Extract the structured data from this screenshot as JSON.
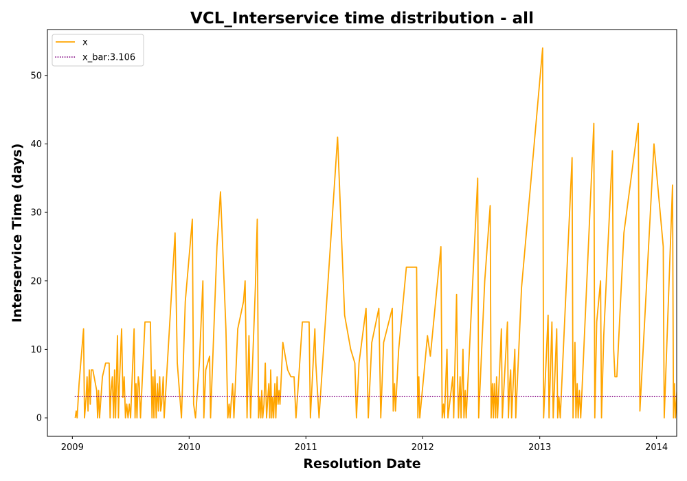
{
  "chart_data": {
    "type": "line",
    "title": "VCL_Interservice time distribution - all",
    "xlabel": "Resolution Date",
    "ylabel": "Interservice Time (days)",
    "xlim": [
      "2008-10-15",
      "2014-03-05"
    ],
    "ylim": [
      -2.7,
      56.7
    ],
    "x_ticks": [
      "2009-01-01",
      "2010-01-01",
      "2011-01-01",
      "2012-01-01",
      "2013-01-01",
      "2014-01-01"
    ],
    "x_tick_labels": [
      "2009",
      "2010",
      "2011",
      "2012",
      "2013",
      "2014"
    ],
    "y_ticks": [
      0,
      10,
      20,
      30,
      40,
      50
    ],
    "y_tick_labels": [
      "0",
      "10",
      "20",
      "30",
      "40",
      "50"
    ],
    "grid": false,
    "legend": "upper left",
    "series": [
      {
        "name": "x",
        "color": "#ffa500",
        "style": "solid",
        "points": [
          [
            "2009-01-10",
            0
          ],
          [
            "2009-01-13",
            1
          ],
          [
            "2009-01-16",
            0
          ],
          [
            "2009-01-22",
            5
          ],
          [
            "2009-02-05",
            13
          ],
          [
            "2009-02-08",
            0
          ],
          [
            "2009-02-13",
            3
          ],
          [
            "2009-02-16",
            6
          ],
          [
            "2009-02-19",
            1
          ],
          [
            "2009-02-23",
            7
          ],
          [
            "2009-02-26",
            2
          ],
          [
            "2009-03-01",
            7
          ],
          [
            "2009-03-06",
            7
          ],
          [
            "2009-03-18",
            4
          ],
          [
            "2009-03-21",
            0
          ],
          [
            "2009-03-24",
            4
          ],
          [
            "2009-03-27",
            0
          ],
          [
            "2009-03-30",
            2
          ],
          [
            "2009-04-05",
            6
          ],
          [
            "2009-04-15",
            8
          ],
          [
            "2009-04-26",
            8
          ],
          [
            "2009-04-29",
            0
          ],
          [
            "2009-05-02",
            4
          ],
          [
            "2009-05-06",
            6
          ],
          [
            "2009-05-10",
            0
          ],
          [
            "2009-05-13",
            7
          ],
          [
            "2009-05-16",
            0
          ],
          [
            "2009-05-22",
            12
          ],
          [
            "2009-05-25",
            0
          ],
          [
            "2009-05-28",
            5
          ],
          [
            "2009-06-04",
            13
          ],
          [
            "2009-06-08",
            3
          ],
          [
            "2009-06-12",
            6
          ],
          [
            "2009-06-16",
            0
          ],
          [
            "2009-06-20",
            2
          ],
          [
            "2009-06-24",
            0
          ],
          [
            "2009-06-28",
            2
          ],
          [
            "2009-07-02",
            0
          ],
          [
            "2009-07-13",
            13
          ],
          [
            "2009-07-16",
            0
          ],
          [
            "2009-07-19",
            5
          ],
          [
            "2009-07-22",
            0
          ],
          [
            "2009-07-26",
            6
          ],
          [
            "2009-07-29",
            5
          ],
          [
            "2009-08-02",
            0
          ],
          [
            "2009-08-16",
            14
          ],
          [
            "2009-09-02",
            14
          ],
          [
            "2009-09-07",
            0
          ],
          [
            "2009-09-10",
            6
          ],
          [
            "2009-09-13",
            0
          ],
          [
            "2009-09-16",
            7
          ],
          [
            "2009-09-20",
            0
          ],
          [
            "2009-09-24",
            5
          ],
          [
            "2009-09-27",
            1
          ],
          [
            "2009-10-01",
            6
          ],
          [
            "2009-10-04",
            1
          ],
          [
            "2009-10-07",
            2
          ],
          [
            "2009-10-12",
            6
          ],
          [
            "2009-10-15",
            0
          ],
          [
            "2009-11-18",
            27
          ],
          [
            "2009-11-25",
            8
          ],
          [
            "2009-12-08",
            0
          ],
          [
            "2009-12-20",
            17
          ],
          [
            "2010-01-11",
            29
          ],
          [
            "2010-01-15",
            2
          ],
          [
            "2010-01-21",
            0
          ],
          [
            "2010-02-02",
            8
          ],
          [
            "2010-02-13",
            20
          ],
          [
            "2010-02-16",
            0
          ],
          [
            "2010-02-22",
            7
          ],
          [
            "2010-03-06",
            9
          ],
          [
            "2010-03-09",
            0
          ],
          [
            "2010-03-29",
            25
          ],
          [
            "2010-04-09",
            33
          ],
          [
            "2010-04-26",
            13
          ],
          [
            "2010-05-02",
            0
          ],
          [
            "2010-05-06",
            2
          ],
          [
            "2010-05-09",
            0
          ],
          [
            "2010-05-12",
            2
          ],
          [
            "2010-05-17",
            5
          ],
          [
            "2010-05-21",
            0
          ],
          [
            "2010-06-02",
            13
          ],
          [
            "2010-06-20",
            17
          ],
          [
            "2010-06-25",
            20
          ],
          [
            "2010-07-01",
            0
          ],
          [
            "2010-07-07",
            12
          ],
          [
            "2010-07-12",
            0
          ],
          [
            "2010-07-27",
            19
          ],
          [
            "2010-08-02",
            29
          ],
          [
            "2010-08-06",
            0
          ],
          [
            "2010-08-10",
            3
          ],
          [
            "2010-08-13",
            0
          ],
          [
            "2010-08-16",
            4
          ],
          [
            "2010-08-19",
            0
          ],
          [
            "2010-08-23",
            2
          ],
          [
            "2010-08-27",
            8
          ],
          [
            "2010-08-31",
            0
          ],
          [
            "2010-09-04",
            3
          ],
          [
            "2010-09-07",
            5
          ],
          [
            "2010-09-10",
            0
          ],
          [
            "2010-09-13",
            7
          ],
          [
            "2010-09-16",
            0
          ],
          [
            "2010-09-19",
            3
          ],
          [
            "2010-09-22",
            0
          ],
          [
            "2010-09-26",
            5
          ],
          [
            "2010-09-29",
            0
          ],
          [
            "2010-10-03",
            6
          ],
          [
            "2010-10-06",
            2
          ],
          [
            "2010-10-09",
            4
          ],
          [
            "2010-10-12",
            2
          ],
          [
            "2010-10-21",
            11
          ],
          [
            "2010-11-05",
            7
          ],
          [
            "2010-11-15",
            6
          ],
          [
            "2010-11-25",
            6
          ],
          [
            "2010-12-01",
            0
          ],
          [
            "2010-12-07",
            4
          ],
          [
            "2010-12-21",
            14
          ],
          [
            "2011-01-11",
            14
          ],
          [
            "2011-01-15",
            0
          ],
          [
            "2011-01-29",
            13
          ],
          [
            "2011-02-01",
            8
          ],
          [
            "2011-02-11",
            0
          ],
          [
            "2011-04-10",
            41
          ],
          [
            "2011-05-02",
            15
          ],
          [
            "2011-05-21",
            10
          ],
          [
            "2011-06-03",
            8
          ],
          [
            "2011-06-08",
            0
          ],
          [
            "2011-06-16",
            8
          ],
          [
            "2011-07-08",
            16
          ],
          [
            "2011-07-15",
            0
          ],
          [
            "2011-07-26",
            11
          ],
          [
            "2011-08-17",
            16
          ],
          [
            "2011-08-23",
            0
          ],
          [
            "2011-09-01",
            11
          ],
          [
            "2011-09-28",
            16
          ],
          [
            "2011-10-01",
            1
          ],
          [
            "2011-10-05",
            5
          ],
          [
            "2011-10-08",
            1
          ],
          [
            "2011-10-18",
            10
          ],
          [
            "2011-11-11",
            22
          ],
          [
            "2011-12-13",
            22
          ],
          [
            "2011-12-17",
            0
          ],
          [
            "2011-12-20",
            6
          ],
          [
            "2011-12-23",
            0
          ],
          [
            "2012-01-04",
            6
          ],
          [
            "2012-01-16",
            12
          ],
          [
            "2012-01-25",
            9
          ],
          [
            "2012-02-27",
            25
          ],
          [
            "2012-03-02",
            0
          ],
          [
            "2012-03-06",
            2
          ],
          [
            "2012-03-09",
            0
          ],
          [
            "2012-03-17",
            10
          ],
          [
            "2012-03-20",
            0
          ],
          [
            "2012-04-04",
            6
          ],
          [
            "2012-04-07",
            0
          ],
          [
            "2012-04-16",
            18
          ],
          [
            "2012-04-19",
            6
          ],
          [
            "2012-04-22",
            0
          ],
          [
            "2012-04-27",
            6
          ],
          [
            "2012-04-30",
            0
          ],
          [
            "2012-05-06",
            10
          ],
          [
            "2012-05-09",
            0
          ],
          [
            "2012-05-13",
            4
          ],
          [
            "2012-05-16",
            0
          ],
          [
            "2012-06-21",
            35
          ],
          [
            "2012-06-24",
            0
          ],
          [
            "2012-07-13",
            20
          ],
          [
            "2012-07-30",
            31
          ],
          [
            "2012-08-02",
            0
          ],
          [
            "2012-08-06",
            5
          ],
          [
            "2012-08-09",
            0
          ],
          [
            "2012-08-12",
            5
          ],
          [
            "2012-08-16",
            0
          ],
          [
            "2012-08-19",
            6
          ],
          [
            "2012-08-22",
            0
          ],
          [
            "2012-09-03",
            13
          ],
          [
            "2012-09-06",
            0
          ],
          [
            "2012-09-22",
            14
          ],
          [
            "2012-09-25",
            0
          ],
          [
            "2012-09-29",
            5
          ],
          [
            "2012-10-02",
            7
          ],
          [
            "2012-10-05",
            0
          ],
          [
            "2012-10-15",
            10
          ],
          [
            "2012-10-18",
            0
          ],
          [
            "2012-11-05",
            19
          ],
          [
            "2013-01-10",
            54
          ],
          [
            "2013-01-13",
            0
          ],
          [
            "2013-01-27",
            15
          ],
          [
            "2013-01-30",
            0
          ],
          [
            "2013-02-08",
            14
          ],
          [
            "2013-02-12",
            0
          ],
          [
            "2013-02-23",
            13
          ],
          [
            "2013-02-26",
            0
          ],
          [
            "2013-03-02",
            3
          ],
          [
            "2013-03-06",
            0
          ],
          [
            "2013-04-12",
            38
          ],
          [
            "2013-04-15",
            0
          ],
          [
            "2013-04-21",
            11
          ],
          [
            "2013-04-24",
            0
          ],
          [
            "2013-04-28",
            5
          ],
          [
            "2013-05-01",
            0
          ],
          [
            "2013-05-05",
            4
          ],
          [
            "2013-05-09",
            0
          ],
          [
            "2013-05-13",
            4
          ],
          [
            "2013-06-19",
            43
          ],
          [
            "2013-06-22",
            0
          ],
          [
            "2013-06-28",
            14
          ],
          [
            "2013-07-10",
            20
          ],
          [
            "2013-07-13",
            0
          ],
          [
            "2013-07-20",
            12
          ],
          [
            "2013-08-16",
            39
          ],
          [
            "2013-08-20",
            10
          ],
          [
            "2013-08-24",
            6
          ],
          [
            "2013-08-30",
            6
          ],
          [
            "2013-09-21",
            27
          ],
          [
            "2013-11-05",
            43
          ],
          [
            "2013-11-10",
            1
          ],
          [
            "2013-12-24",
            40
          ],
          [
            "2014-01-22",
            25
          ],
          [
            "2014-01-25",
            0
          ],
          [
            "2014-02-20",
            34
          ],
          [
            "2014-02-23",
            0
          ],
          [
            "2014-02-26",
            5
          ],
          [
            "2014-03-01",
            0
          ],
          [
            "2014-04-01",
            25
          ]
        ]
      },
      {
        "name": "x_bar:3.106",
        "color": "#800080",
        "style": "dotted",
        "points": [
          [
            "2009-01-10",
            3.106
          ],
          [
            "2014-04-01",
            3.106
          ]
        ]
      }
    ]
  }
}
